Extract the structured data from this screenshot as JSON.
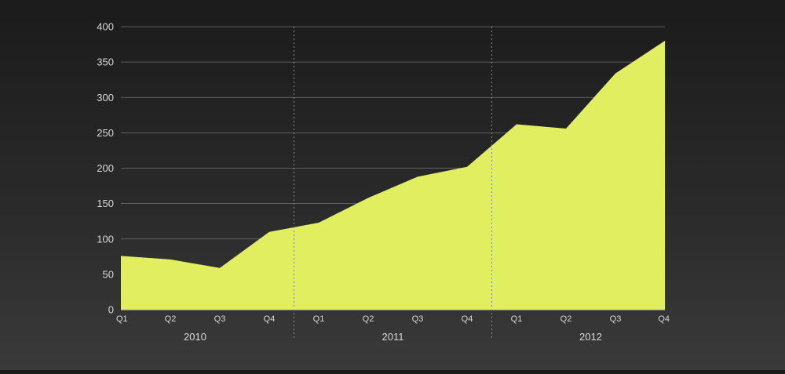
{
  "chart_data": {
    "type": "area",
    "title": "",
    "xlabel": "",
    "ylabel": "",
    "ylim": [
      0,
      400
    ],
    "yticks": [
      0,
      50,
      100,
      150,
      200,
      250,
      300,
      350,
      400
    ],
    "categories": [
      "Q1",
      "Q2",
      "Q3",
      "Q4",
      "Q1",
      "Q2",
      "Q3",
      "Q4",
      "Q1",
      "Q2",
      "Q3",
      "Q4"
    ],
    "groups": [
      {
        "label": "2010",
        "count": 4
      },
      {
        "label": "2011",
        "count": 4
      },
      {
        "label": "2012",
        "count": 4
      }
    ],
    "series": [
      {
        "values": [
          76,
          71,
          59,
          110,
          123,
          158,
          188,
          202,
          262,
          256,
          334,
          380
        ]
      }
    ],
    "grid": "horizontal",
    "legend": "none"
  },
  "colors": {
    "area_fill": "#e1ee60",
    "grid_line": "#8a8a8a",
    "separator": "#8a8a8a",
    "axis": "#c8c8c8",
    "text": "#d8d8d8"
  }
}
